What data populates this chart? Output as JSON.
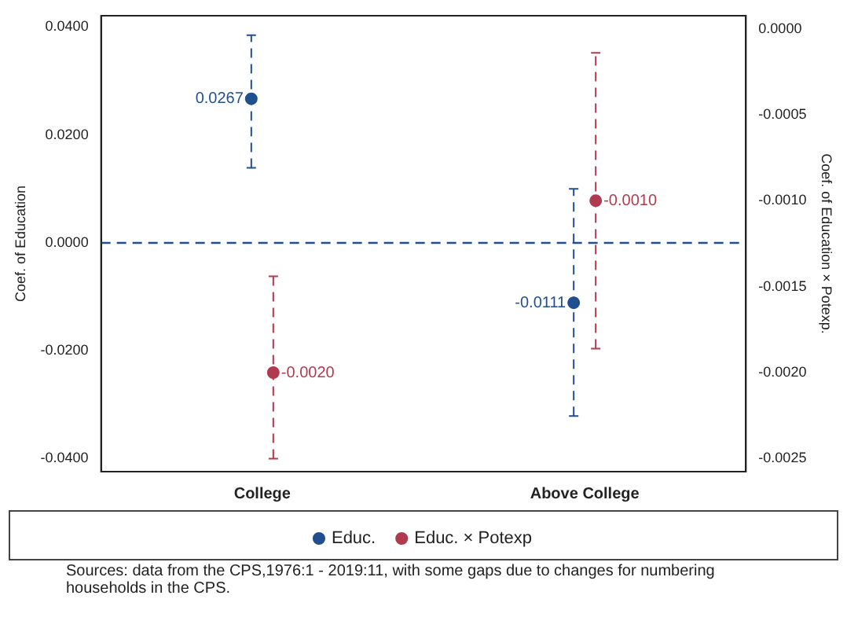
{
  "chart_data": {
    "type": "scatter",
    "xlabel": null,
    "ylabel": "Coef. of Education",
    "y2label": "Coef. of Education × Potexp.",
    "categories": [
      "College",
      "Above College"
    ],
    "series": [
      {
        "name": "Educ.",
        "color": "#1f4f8f",
        "values": [
          0.0267,
          -0.0111
        ],
        "errors": [
          [
            0.0139,
            0.0385
          ],
          [
            -0.0321,
            0.01
          ]
        ],
        "value_labels": [
          "0.0267",
          "-0.0111"
        ]
      },
      {
        "name": "Educ. × Potexp",
        "color": "#b03a4e",
        "axis": "y2",
        "values": [
          -0.002,
          -0.001
        ],
        "errors": [
          [
            -0.0025,
            -0.00144
          ],
          [
            -0.00186,
            -0.00014
          ]
        ],
        "value_labels": [
          "-0.0020",
          "-0.0010"
        ]
      }
    ],
    "ylim": [
      -0.0424,
      0.0421
    ],
    "yticks": [
      {
        "value": -0.04,
        "label": "-0.0400"
      },
      {
        "value": -0.02,
        "label": "-0.0200"
      },
      {
        "value": 0,
        "label": "0.0000"
      },
      {
        "value": 0.02,
        "label": "0.0200"
      },
      {
        "value": 0.04,
        "label": "0.0400"
      }
    ],
    "y2lim": [
      -0.002576,
      7.6e-05
    ],
    "y2ticks": [
      {
        "value": -0.0025,
        "label": "-0.0025"
      },
      {
        "value": -0.002,
        "label": "-0.0020"
      },
      {
        "value": -0.0015,
        "label": "-0.0015"
      },
      {
        "value": -0.001,
        "label": "-0.0010"
      },
      {
        "value": -0.0005,
        "label": "-0.0005"
      },
      {
        "value": 0,
        "label": "0.0000"
      }
    ],
    "ref_lines": [
      {
        "axis": "y",
        "value": 0,
        "color": "#1f4f8f",
        "line_style": "dashed"
      }
    ],
    "line_style": "dashed",
    "marker": "circle",
    "grid": false,
    "legend": "bottom",
    "annotations": [
      "Sources: data from the CPS,1976:1 - 2019:11, with some gaps due to changes for numbering households in the CPS."
    ]
  }
}
